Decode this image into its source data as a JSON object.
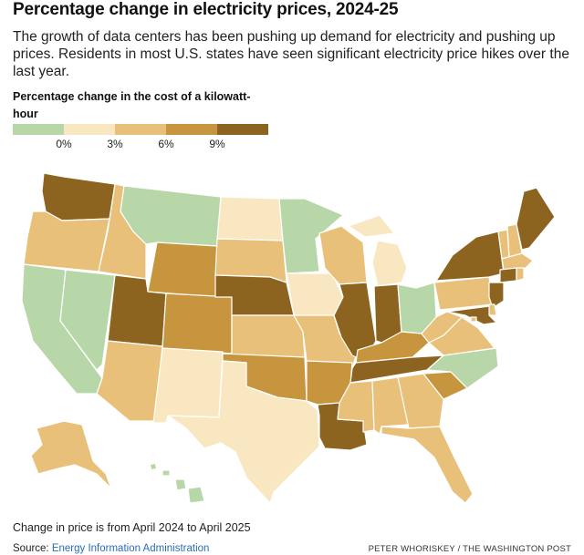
{
  "title": "Percentage change in electricity prices, 2024-25",
  "subtitle": "The growth of data centers has been pushing up demand for electricity and pushing up prices. Residents in most U.S. states have seen significant electricity price hikes over the last year.",
  "legend": {
    "title": "Percentage change in the cost of a kilowatt-hour",
    "ticks": [
      "0%",
      "3%",
      "6%",
      "9%"
    ],
    "bins": [
      {
        "range": "< 0%",
        "color": "#b7d7a8"
      },
      {
        "range": "0-3%",
        "color": "#f8e7c1"
      },
      {
        "range": "3-6%",
        "color": "#e8c07a"
      },
      {
        "range": "6-9%",
        "color": "#c7953e"
      },
      {
        "range": "> 9%",
        "color": "#8c6420"
      }
    ]
  },
  "states": {
    "WA": 4,
    "OR": 2,
    "CA": 0,
    "NV": 0,
    "ID": 2,
    "MT": 0,
    "WY": 3,
    "UT": 4,
    "AZ": 2,
    "CO": 3,
    "NM": 1,
    "ND": 1,
    "SD": 2,
    "NE": 4,
    "KS": 2,
    "OK": 3,
    "TX": 1,
    "MN": 0,
    "IA": 1,
    "MO": 2,
    "AR": 3,
    "LA": 4,
    "WI": 2,
    "IL": 4,
    "MI": 1,
    "IN": 4,
    "OH": 0,
    "KY": 3,
    "TN": 4,
    "MS": 2,
    "AL": 2,
    "GA": 2,
    "FL": 2,
    "SC": 3,
    "NC": 0,
    "VA": 2,
    "WV": 2,
    "PA": 2,
    "NY": 4,
    "VT": 2,
    "NH": 2,
    "ME": 4,
    "MA": 2,
    "CT": 4,
    "RI": 2,
    "NJ": 4,
    "DE": 2,
    "MD": 4,
    "DC": 2,
    "AK": 2,
    "HI": 0
  },
  "footnote": "Change in price is from April 2024 to April 2025",
  "source": {
    "label": "Source: ",
    "link": "Energy Information Administration"
  },
  "credit": "PETER WHORISKEY / THE WASHINGTON POST"
}
